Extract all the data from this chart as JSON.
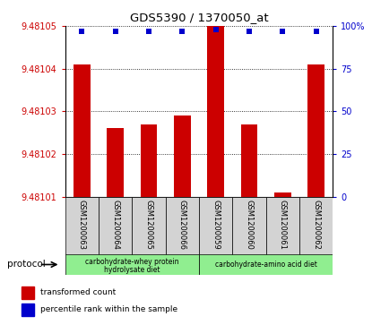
{
  "title": "GDS5390 / 1370050_at",
  "samples": [
    "GSM1200063",
    "GSM1200064",
    "GSM1200065",
    "GSM1200066",
    "GSM1200059",
    "GSM1200060",
    "GSM1200061",
    "GSM1200062"
  ],
  "transformed_counts": [
    9.481041,
    9.481026,
    9.481027,
    9.481029,
    9.48105,
    9.481027,
    9.481011,
    9.481041
  ],
  "percentile_ranks": [
    97,
    97,
    97,
    97,
    98,
    97,
    97,
    97
  ],
  "ylim_left": [
    9.48101,
    9.48105
  ],
  "ylim_right": [
    0,
    100
  ],
  "yticks_left": [
    9.48101,
    9.48102,
    9.48103,
    9.48104,
    9.48105
  ],
  "yticks_right": [
    0,
    25,
    50,
    75,
    100
  ],
  "ytick_labels_right": [
    "0",
    "25",
    "50",
    "75",
    "100%"
  ],
  "bar_color": "#cc0000",
  "dot_color": "#0000cc",
  "group1_label_line1": "carbohydrate-whey protein",
  "group1_label_line2": "hydrolysate diet",
  "group2_label": "carbohydrate-amino acid diet",
  "group1_color": "#90ee90",
  "group2_color": "#90ee90",
  "protocol_label": "protocol",
  "legend_bar_label": "transformed count",
  "legend_dot_label": "percentile rank within the sample",
  "background_color": "#ffffff",
  "tick_label_color_left": "#cc0000",
  "tick_label_color_right": "#0000cc",
  "bar_width": 0.5,
  "base_value": 9.48101,
  "sample_box_color": "#d3d3d3",
  "spine_color": "#000000"
}
